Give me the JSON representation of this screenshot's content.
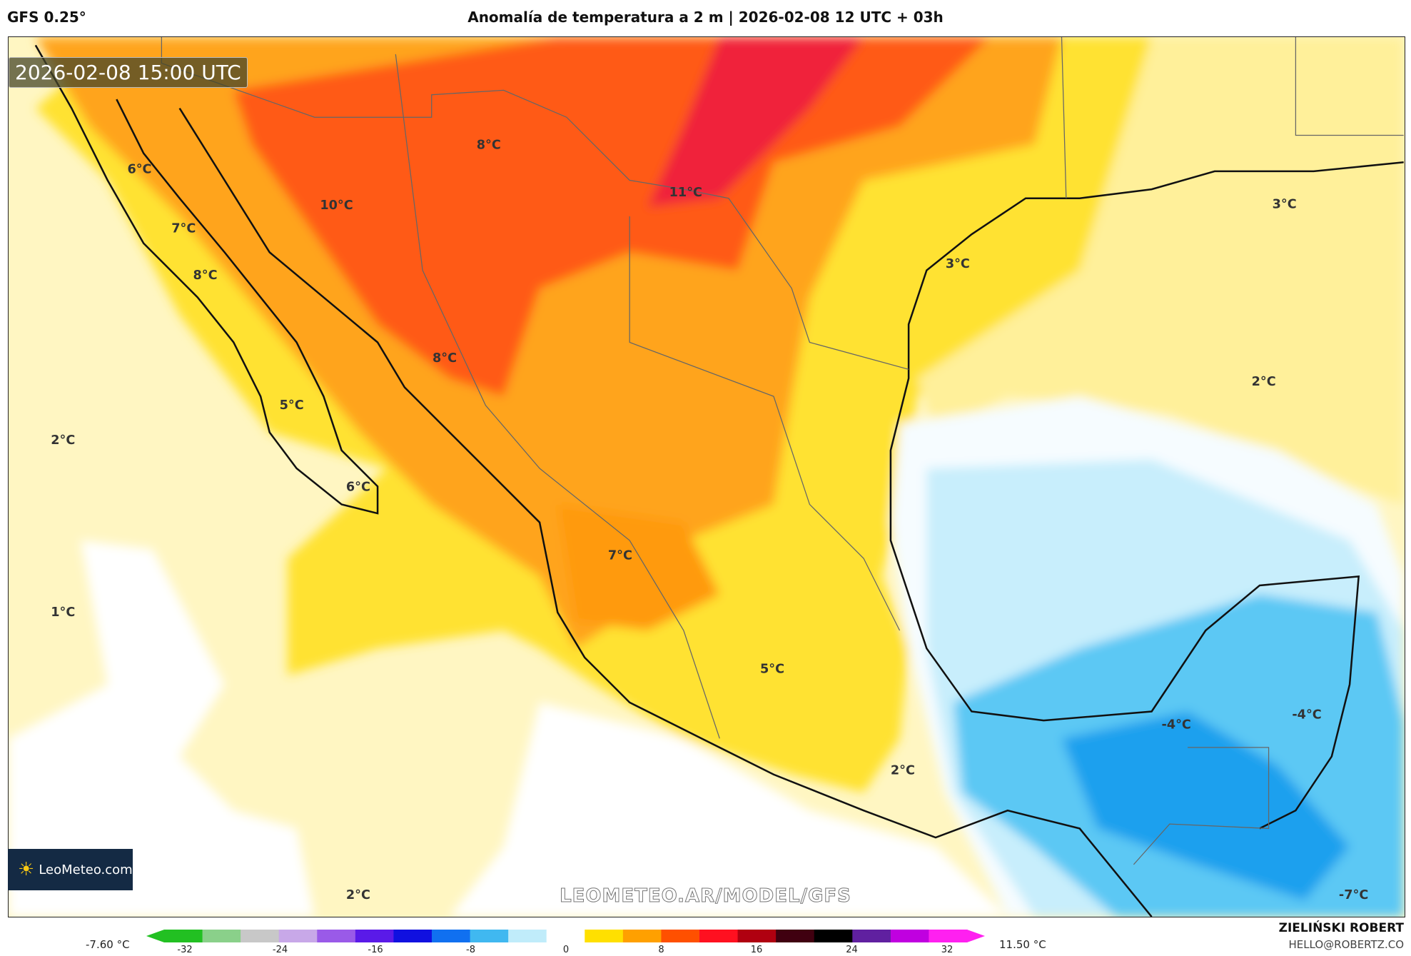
{
  "header": {
    "model": "GFS 0.25°",
    "title": "Anomalía de temperatura a 2 m | 2026-02-08 12 UTC + 03h"
  },
  "map": {
    "valid_time": "2026-02-08 15:00 UTC",
    "labels": [
      "8°C",
      "6°C",
      "10°C",
      "11°C",
      "7°C",
      "8°C",
      "3°C",
      "3°C",
      "8°C",
      "5°C",
      "2°C",
      "2°C",
      "6°C",
      "7°C",
      "1°C",
      "5°C",
      "-4°C",
      "-4°C",
      "2°C",
      "2°C",
      "-7°C"
    ],
    "watermark": "LEOMETEO.AR/MODEL/GFS",
    "logo": "LeoMeteo.com"
  },
  "colorbar": {
    "min_label": "-7.60 °C",
    "max_label": "11.50 °C",
    "ticks": [
      "-32",
      "-24",
      "-16",
      "-8",
      "0",
      "8",
      "16",
      "24",
      "32"
    ],
    "colors": [
      "#22c022",
      "#8ad08a",
      "#c8c8c8",
      "#c8a8e8",
      "#9a5ae8",
      "#5a1ae8",
      "#1010e0",
      "#1070f0",
      "#40b8f0",
      "#c0ecfa",
      "#ffffff",
      "#ffe000",
      "#ffa000",
      "#ff5000",
      "#ff1020",
      "#b00010",
      "#400010",
      "#000000",
      "#6020a0",
      "#c000e0",
      "#ff20f0"
    ]
  },
  "credits": {
    "author": "ZIELIŃSKI ROBERT",
    "email": "HELLO@ROBERTZ.CO"
  }
}
